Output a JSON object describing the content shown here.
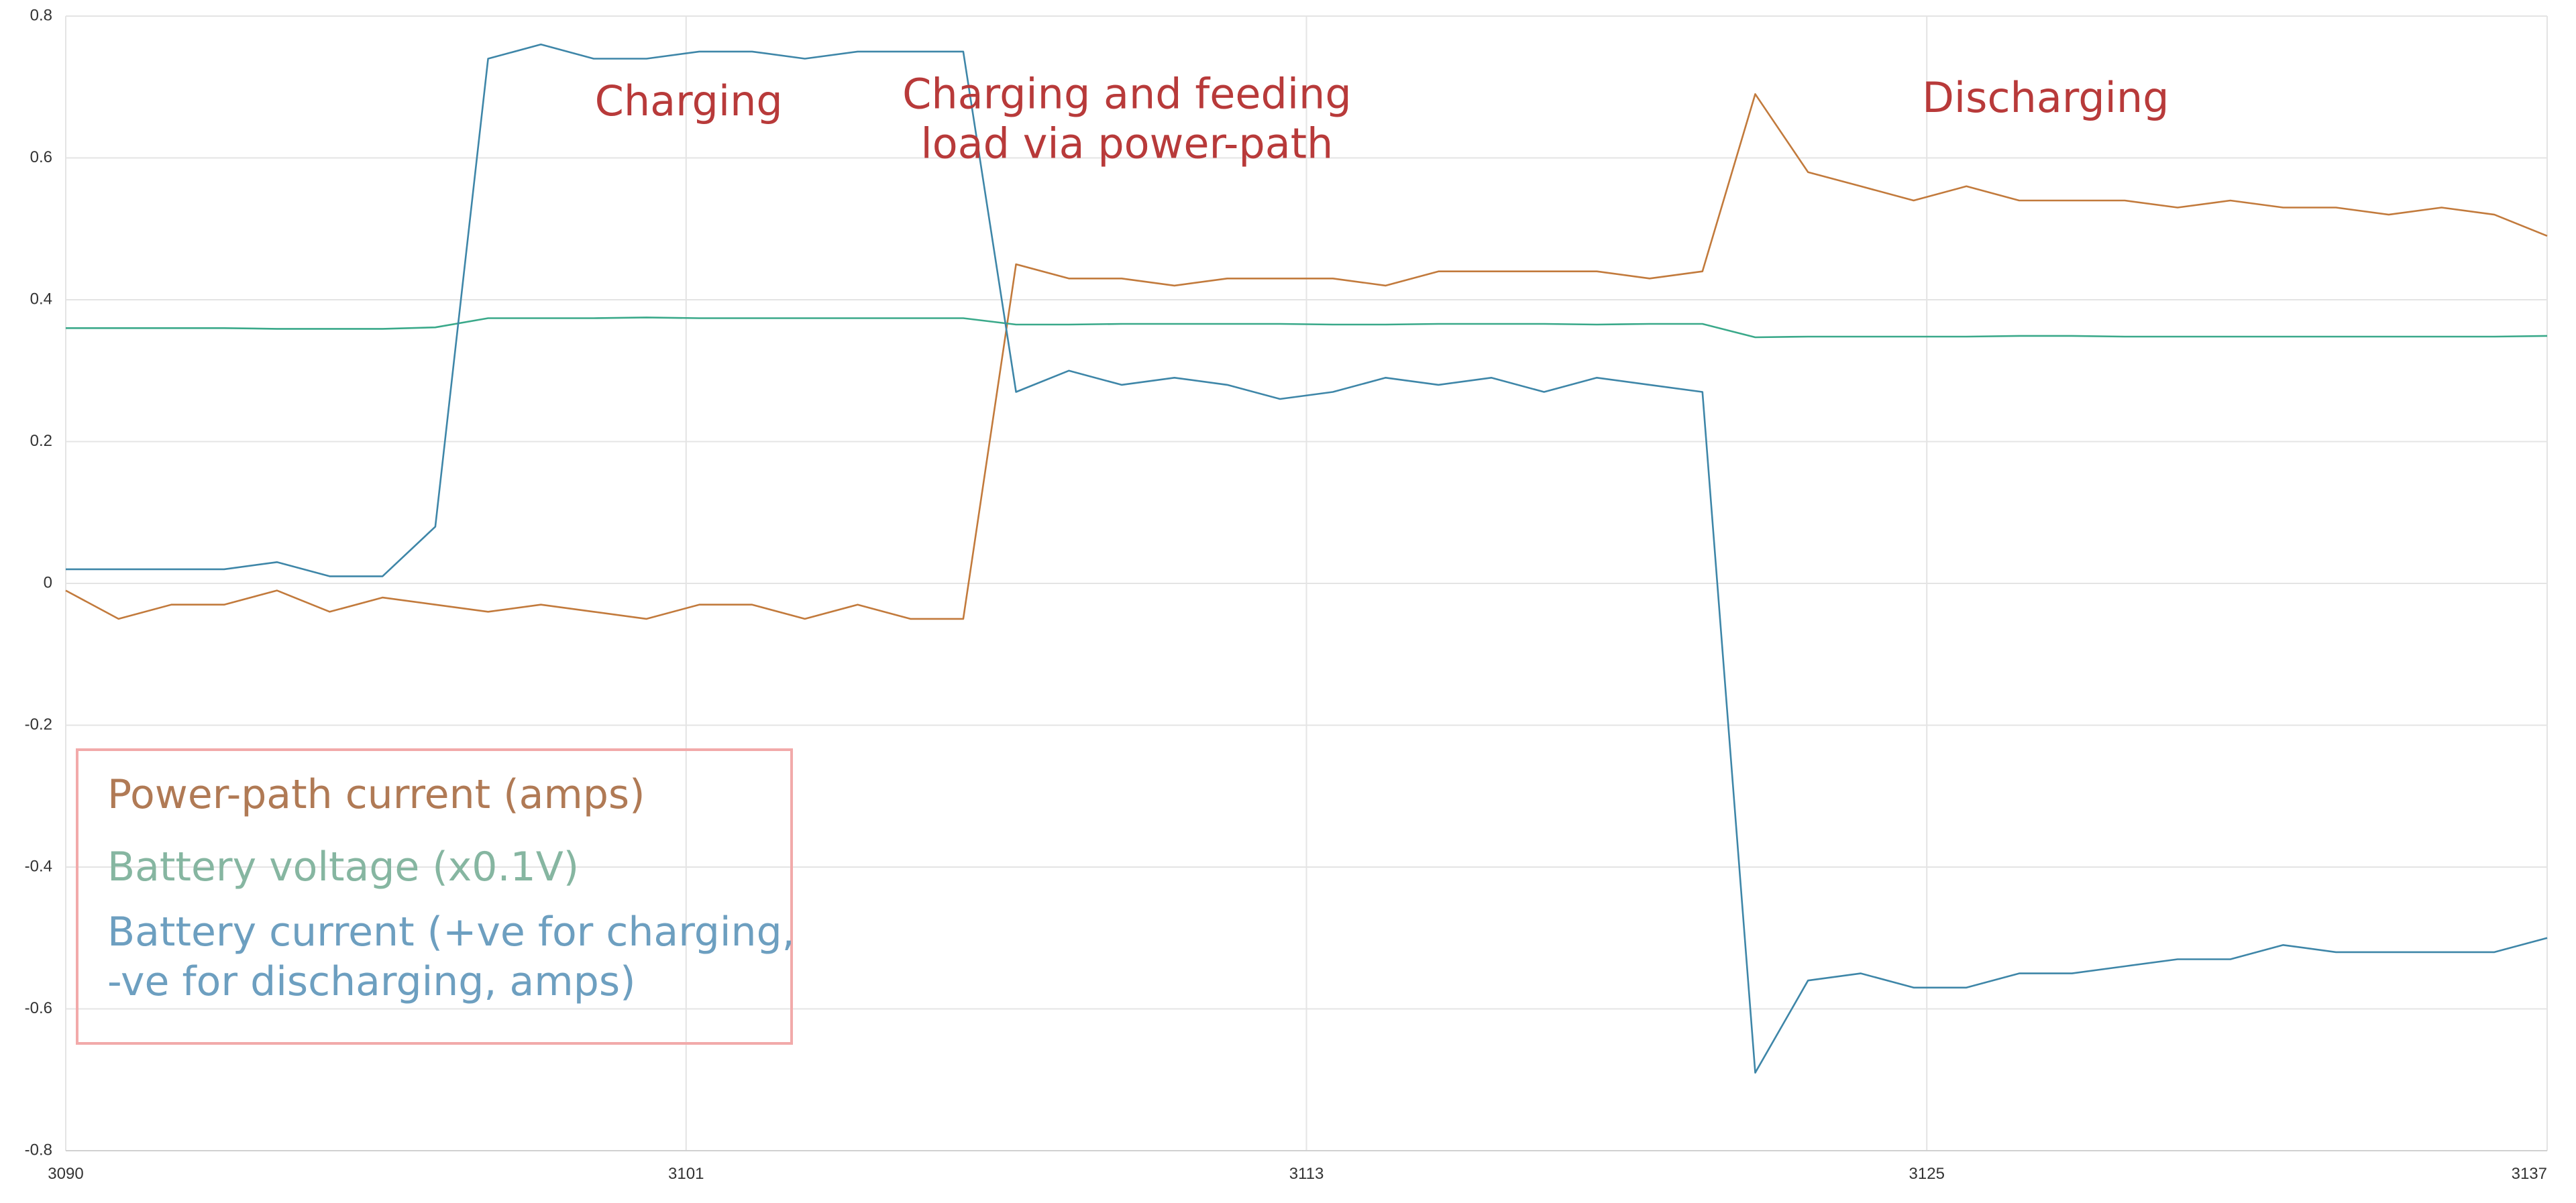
{
  "chart_data": {
    "type": "line",
    "xlim": [
      3090,
      3137
    ],
    "ylim": [
      -0.8,
      0.8
    ],
    "x_ticks": [
      "3090",
      "3101",
      "3113",
      "3125",
      "3137"
    ],
    "x_tick_values": [
      3090,
      3101.75,
      3113.5,
      3125.25,
      3137
    ],
    "y_ticks": [
      "0.8",
      "0.6",
      "0.4",
      "0.2",
      "0",
      "-0.2",
      "-0.4",
      "-0.6",
      "-0.8"
    ],
    "y_tick_values": [
      0.8,
      0.6,
      0.4,
      0.2,
      0,
      -0.2,
      -0.4,
      -0.6,
      -0.8
    ],
    "grid": true,
    "legend": {
      "placement": "bottom-left",
      "entries": [
        {
          "lines": [
            "Power-path current (amps)"
          ],
          "color": "#b07a55"
        },
        {
          "lines": [
            "Battery voltage (x0.1V)"
          ],
          "color": "#86b6a1"
        },
        {
          "lines": [
            "Battery current (+ve for charging,",
            "-ve for discharging, amps)"
          ],
          "color": "#6d9fc0"
        }
      ],
      "border_color": "#f2aaaa"
    },
    "annotations": [
      {
        "lines": [
          "Charging"
        ],
        "x": 3101.8,
        "y": 0.66
      },
      {
        "lines": [
          "Charging and feeding",
          "load via power-path"
        ],
        "x": 3110.1,
        "y": 0.67
      },
      {
        "lines": [
          "Discharging"
        ],
        "x": 3127.5,
        "y": 0.665
      }
    ],
    "series": [
      {
        "color": "#c27a3c",
        "x": [
          3090,
          3091,
          3092,
          3093,
          3094,
          3095,
          3096,
          3097,
          3098,
          3099,
          3100,
          3101,
          3102,
          3103,
          3104,
          3105,
          3106,
          3107,
          3108,
          3109,
          3110,
          3111,
          3112,
          3113,
          3114,
          3115,
          3116,
          3117,
          3118,
          3119,
          3120,
          3121,
          3122,
          3123,
          3124,
          3125,
          3126,
          3127,
          3128,
          3129,
          3130,
          3131,
          3132,
          3133,
          3134,
          3135,
          3136,
          3137
        ],
        "values": [
          -0.01,
          -0.05,
          -0.03,
          -0.03,
          -0.01,
          -0.04,
          -0.02,
          -0.03,
          -0.04,
          -0.03,
          -0.04,
          -0.05,
          -0.03,
          -0.03,
          -0.05,
          -0.03,
          -0.05,
          -0.05,
          0.45,
          0.43,
          0.43,
          0.42,
          0.43,
          0.43,
          0.43,
          0.42,
          0.44,
          0.44,
          0.44,
          0.44,
          0.43,
          0.44,
          0.69,
          0.58,
          0.56,
          0.54,
          0.56,
          0.54,
          0.54,
          0.54,
          0.53,
          0.54,
          0.53,
          0.53,
          0.52,
          0.53,
          0.52,
          0.49
        ]
      },
      {
        "color": "#3aa98a",
        "x": [
          3090,
          3091,
          3092,
          3093,
          3094,
          3095,
          3096,
          3097,
          3098,
          3099,
          3100,
          3101,
          3102,
          3103,
          3104,
          3105,
          3106,
          3107,
          3108,
          3109,
          3110,
          3111,
          3112,
          3113,
          3114,
          3115,
          3116,
          3117,
          3118,
          3119,
          3120,
          3121,
          3122,
          3123,
          3124,
          3125,
          3126,
          3127,
          3128,
          3129,
          3130,
          3131,
          3132,
          3133,
          3134,
          3135,
          3136,
          3137
        ],
        "values": [
          0.36,
          0.36,
          0.36,
          0.36,
          0.359,
          0.359,
          0.359,
          0.361,
          0.374,
          0.374,
          0.374,
          0.375,
          0.374,
          0.374,
          0.374,
          0.374,
          0.374,
          0.374,
          0.365,
          0.365,
          0.366,
          0.366,
          0.366,
          0.366,
          0.365,
          0.365,
          0.366,
          0.366,
          0.366,
          0.365,
          0.366,
          0.366,
          0.347,
          0.348,
          0.348,
          0.348,
          0.348,
          0.349,
          0.349,
          0.348,
          0.348,
          0.348,
          0.348,
          0.348,
          0.348,
          0.348,
          0.348,
          0.349
        ]
      },
      {
        "color": "#3e86a8",
        "x": [
          3090,
          3091,
          3092,
          3093,
          3094,
          3095,
          3096,
          3097,
          3098,
          3099,
          3100,
          3101,
          3102,
          3103,
          3104,
          3105,
          3106,
          3107,
          3108,
          3109,
          3110,
          3111,
          3112,
          3113,
          3114,
          3115,
          3116,
          3117,
          3118,
          3119,
          3120,
          3121,
          3122,
          3123,
          3124,
          3125,
          3126,
          3127,
          3128,
          3129,
          3130,
          3131,
          3132,
          3133,
          3134,
          3135,
          3136,
          3137
        ],
        "values": [
          0.02,
          0.02,
          0.02,
          0.02,
          0.03,
          0.01,
          0.01,
          0.08,
          0.74,
          0.76,
          0.74,
          0.74,
          0.75,
          0.75,
          0.74,
          0.75,
          0.75,
          0.75,
          0.27,
          0.3,
          0.28,
          0.29,
          0.28,
          0.26,
          0.27,
          0.29,
          0.28,
          0.29,
          0.27,
          0.29,
          0.28,
          0.27,
          -0.69,
          -0.56,
          -0.55,
          -0.57,
          -0.57,
          -0.55,
          -0.55,
          -0.54,
          -0.53,
          -0.53,
          -0.51,
          -0.52,
          -0.52,
          -0.52,
          -0.52,
          -0.5
        ]
      }
    ]
  }
}
